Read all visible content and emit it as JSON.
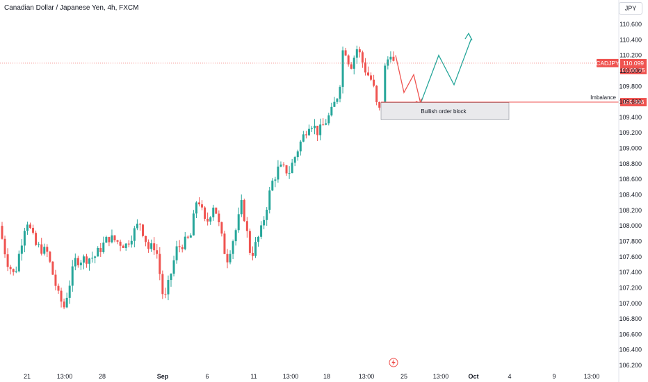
{
  "header": {
    "title": "Canadian Dollar / Japanese Yen, 4h, FXCM",
    "currency_button": "JPY"
  },
  "colors": {
    "up": "#26a69a",
    "down": "#ef5350",
    "arrow_up": "#26a69a",
    "arrow_down": "#ef5350",
    "imbalance_line": "#ef5350",
    "order_block_fill": "#e9e9ec",
    "order_block_border": "#8a8d96"
  },
  "chart_data": {
    "type": "candlestick",
    "symbol_tag": "CADJPY",
    "last_price": "110.099",
    "countdown": "01:08:25",
    "ylim": [
      106.1,
      110.8
    ],
    "y_ticks": [
      "110.600",
      "110.400",
      "110.200",
      "110.000",
      "109.800",
      "109.600",
      "109.400",
      "109.200",
      "109.000",
      "108.800",
      "108.600",
      "108.400",
      "108.200",
      "108.000",
      "107.800",
      "107.600",
      "107.400",
      "107.200",
      "107.000",
      "106.800",
      "106.600",
      "106.400",
      "106.200"
    ],
    "x_ticks": [
      "21",
      "13:00",
      "28",
      "Sep",
      "6",
      "11",
      "13:00",
      "18",
      "13:00",
      "25",
      "13:00",
      "Oct",
      "4",
      "9",
      "13:00"
    ],
    "annotations": {
      "imbalance_label": "Imbalance",
      "imbalance_price": "109.596",
      "imbalance_value": 109.596,
      "order_block_label": "Bullish order block",
      "order_block_range": [
        109.37,
        109.59
      ]
    },
    "projection_down": [
      [
        110.2,
        0
      ],
      [
        109.72,
        1
      ],
      [
        109.95,
        2
      ],
      [
        109.58,
        3
      ]
    ],
    "projection_up": [
      [
        109.58,
        3
      ],
      [
        110.2,
        4
      ],
      [
        109.82,
        5
      ],
      [
        110.42,
        6
      ]
    ]
  }
}
